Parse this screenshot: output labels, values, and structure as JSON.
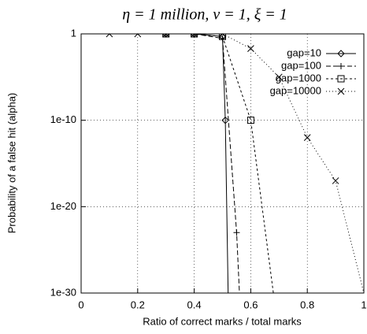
{
  "chart_data": {
    "type": "line",
    "title": "η = 1 million, ν = 1, ξ = 1",
    "x_label": "Ratio of correct marks / total marks",
    "y_label": "Probability of a false hit (alpha)",
    "xlim": [
      0,
      1
    ],
    "xticks": [
      0,
      0.2,
      0.4,
      0.6,
      0.8,
      1
    ],
    "ylim": [
      1e-30,
      1
    ],
    "y_scale": "log",
    "yticks": [
      1,
      {
        "value": 1e-10,
        "label": "1e-10"
      },
      {
        "value": 1e-20,
        "label": "1e-20"
      },
      {
        "value": 1e-30,
        "label": "1e-30"
      }
    ],
    "grid": true,
    "legend": "top-right",
    "series": [
      {
        "name": "gap=10",
        "color": "#000000",
        "dash": "solid",
        "marker": "diamond",
        "x": [
          0.3,
          0.4,
          0.5,
          0.51,
          0.52
        ],
        "values": [
          1,
          1,
          0.5,
          1e-10,
          1e-30
        ]
      },
      {
        "name": "gap=100",
        "color": "#000000",
        "dash": "dashed",
        "marker": "plus",
        "x": [
          0.3,
          0.4,
          0.5,
          0.55,
          0.56
        ],
        "values": [
          1,
          1,
          0.3,
          1e-23,
          1e-30
        ]
      },
      {
        "name": "gap=1000",
        "color": "#000000",
        "dash": "short-dashed",
        "marker": "square",
        "x": [
          0.3,
          0.4,
          0.5,
          0.6,
          0.68
        ],
        "values": [
          1,
          1,
          0.5,
          1e-10,
          1e-30
        ]
      },
      {
        "name": "gap=10000",
        "color": "#000000",
        "dash": "dotted",
        "marker": "cross",
        "x": [
          0.1,
          0.2,
          0.3,
          0.4,
          0.5,
          0.6,
          0.7,
          0.8,
          0.9,
          1
        ],
        "values": [
          1,
          1,
          1,
          1,
          1,
          0.02,
          1e-05,
          1e-12,
          1e-17,
          1e-30
        ]
      }
    ]
  }
}
